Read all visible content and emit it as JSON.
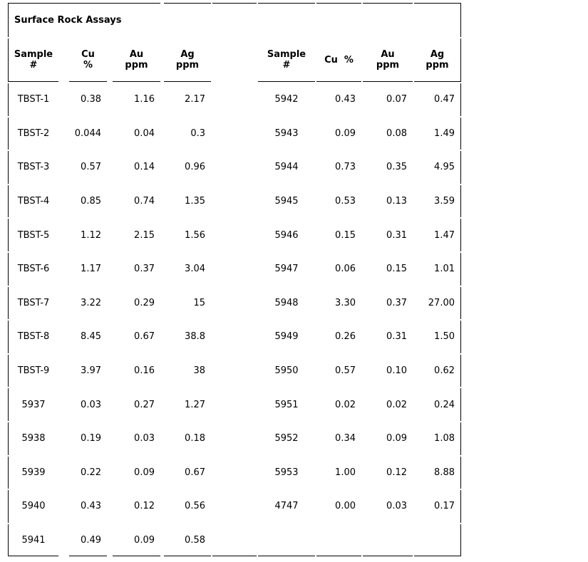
{
  "title": "Surface Rock Assays",
  "colors": {
    "background": "#ffffff",
    "text": "#000000",
    "border": "#000000"
  },
  "tables": {
    "left": {
      "headers": [
        "Sample\n#",
        "Cu\n%",
        "Au\nppm",
        "Ag\nppm"
      ],
      "rows": [
        [
          "TBST-1",
          "0.38",
          "1.16",
          "2.17"
        ],
        [
          "TBST-2",
          "0.044",
          "0.04",
          "0.3"
        ],
        [
          "TBST-3",
          "0.57",
          "0.14",
          "0.96"
        ],
        [
          "TBST-4",
          "0.85",
          "0.74",
          "1.35"
        ],
        [
          "TBST-5",
          "1.12",
          "2.15",
          "1.56"
        ],
        [
          "TBST-6",
          "1.17",
          "0.37",
          "3.04"
        ],
        [
          "TBST-7",
          "3.22",
          "0.29",
          "15"
        ],
        [
          "TBST-8",
          "8.45",
          "0.67",
          "38.8"
        ],
        [
          "TBST-9",
          "3.97",
          "0.16",
          "38"
        ],
        [
          "5937",
          "0.03",
          "0.27",
          "1.27"
        ],
        [
          "5938",
          "0.19",
          "0.03",
          "0.18"
        ],
        [
          "5939",
          "0.22",
          "0.09",
          "0.67"
        ],
        [
          "5940",
          "0.43",
          "0.12",
          "0.56"
        ],
        [
          "5941",
          "0.49",
          "0.09",
          "0.58"
        ]
      ]
    },
    "right": {
      "headers": [
        "Sample\n#",
        "Cu  %",
        "Au\nppm",
        "Ag\nppm"
      ],
      "rows": [
        [
          "5942",
          "0.43",
          "0.07",
          "0.47"
        ],
        [
          "5943",
          "0.09",
          "0.08",
          "1.49"
        ],
        [
          "5944",
          "0.73",
          "0.35",
          "4.95"
        ],
        [
          "5945",
          "0.53",
          "0.13",
          "3.59"
        ],
        [
          "5946",
          "0.15",
          "0.31",
          "1.47"
        ],
        [
          "5947",
          "0.06",
          "0.15",
          "1.01"
        ],
        [
          "5948",
          "3.30",
          "0.37",
          "27.00"
        ],
        [
          "5949",
          "0.26",
          "0.31",
          "1.50"
        ],
        [
          "5950",
          "0.57",
          "0.10",
          "0.62"
        ],
        [
          "5951",
          "0.02",
          "0.02",
          "0.24"
        ],
        [
          "5952",
          "0.34",
          "0.09",
          "1.08"
        ],
        [
          "5953",
          "1.00",
          "0.12",
          "8.88"
        ],
        [
          "4747",
          "0.00",
          "0.03",
          "0.17"
        ]
      ]
    }
  }
}
